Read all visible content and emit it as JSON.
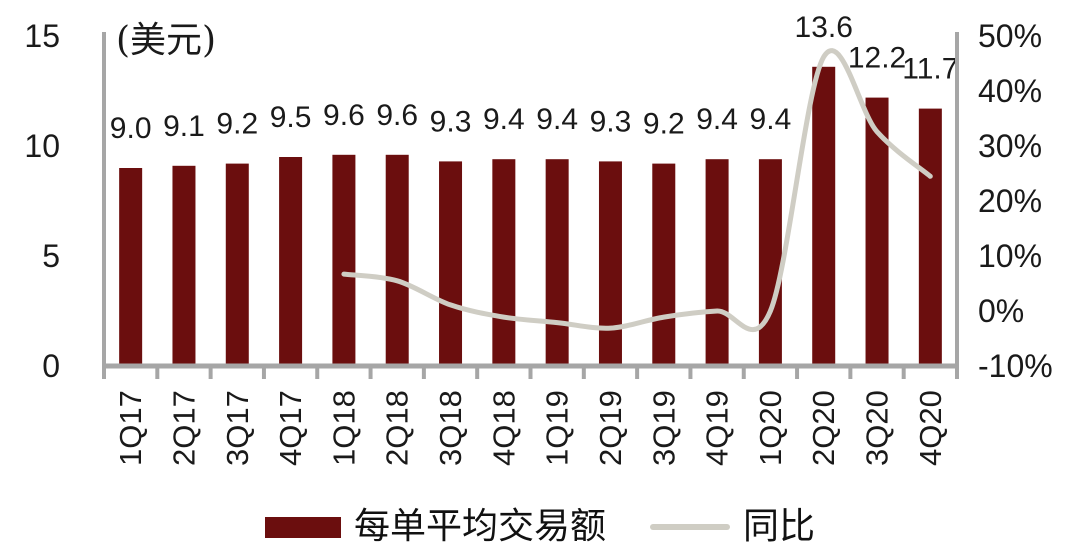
{
  "chart_data": {
    "type": "bar",
    "title": "",
    "categories": [
      "1Q17",
      "2Q17",
      "3Q17",
      "4Q17",
      "1Q18",
      "2Q18",
      "3Q18",
      "4Q18",
      "1Q19",
      "2Q19",
      "3Q19",
      "4Q19",
      "1Q20",
      "2Q20",
      "3Q20",
      "4Q20"
    ],
    "series": [
      {
        "name": "每单平均交易额",
        "chart_type": "bar",
        "axis": "left",
        "color": "#6b0e0e",
        "values": [
          9.0,
          9.1,
          9.2,
          9.5,
          9.6,
          9.6,
          9.3,
          9.4,
          9.4,
          9.3,
          9.2,
          9.4,
          9.4,
          13.6,
          12.2,
          11.7
        ],
        "labels": [
          "9.0",
          "9.1",
          "9.2",
          "9.5",
          "9.6",
          "9.6",
          "9.3",
          "9.4",
          "9.4",
          "9.3",
          "9.2",
          "9.4",
          "9.4",
          "13.6",
          "12.2",
          "11.7"
        ]
      },
      {
        "name": "同比",
        "chart_type": "line",
        "axis": "right",
        "color": "#cfcdc4",
        "values": [
          null,
          null,
          null,
          null,
          6.7,
          5.5,
          1.1,
          -1.1,
          -2.1,
          -3.1,
          -1.1,
          0.0,
          0.0,
          46.2,
          32.6,
          24.5
        ]
      }
    ],
    "left_axis": {
      "title": "(美元)",
      "min": 0,
      "max": 15,
      "tick_values": [
        15,
        10,
        5,
        0
      ],
      "tick_labels": [
        "15",
        "10",
        "5",
        "0"
      ]
    },
    "right_axis": {
      "min": -10,
      "max": 50,
      "tick_values": [
        50,
        40,
        30,
        20,
        10,
        0,
        -10
      ],
      "tick_labels": [
        "50%",
        "40%",
        "30%",
        "20%",
        "10%",
        "0%",
        "-10%"
      ]
    },
    "grid": false,
    "legend_position": "bottom"
  },
  "colors": {
    "axis_line": "#a6a6a6",
    "bar": "#6b0e0e",
    "line": "#cfcdc4",
    "label_text": "#1a1a1a"
  }
}
